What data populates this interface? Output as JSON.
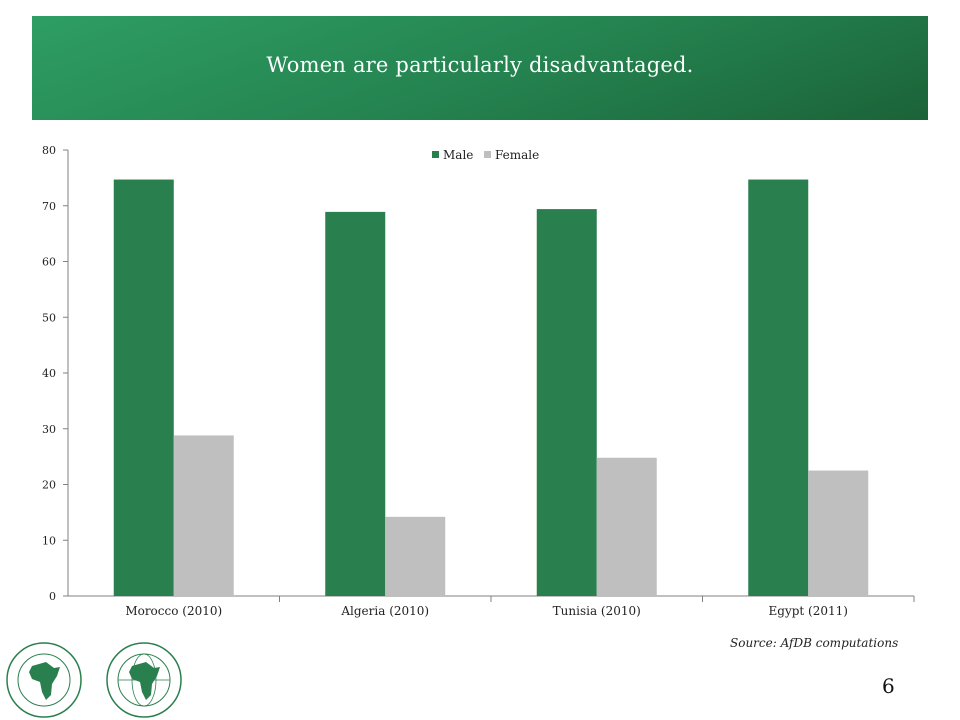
{
  "slide": {
    "title": "Women are particularly disadvantaged.",
    "source": "Source: AfDB computations",
    "page_number": "6"
  },
  "colors": {
    "male": "#2a7f4f",
    "female": "#bfbfbf",
    "banner": "#24824f"
  },
  "chart_data": {
    "type": "bar",
    "categories": [
      "Morocco (2010)",
      "Algeria (2010)",
      "Tunisia (2010)",
      "Egypt (2011)"
    ],
    "series": [
      {
        "name": "Male",
        "values": [
          74.7,
          68.9,
          69.4,
          74.7
        ]
      },
      {
        "name": "Female",
        "values": [
          28.8,
          14.2,
          24.8,
          22.5
        ]
      }
    ],
    "ylim": [
      0,
      80
    ],
    "yticks": [
      0,
      10,
      20,
      30,
      40,
      50,
      60,
      70,
      80
    ],
    "legend": "top-center",
    "grid": false
  }
}
